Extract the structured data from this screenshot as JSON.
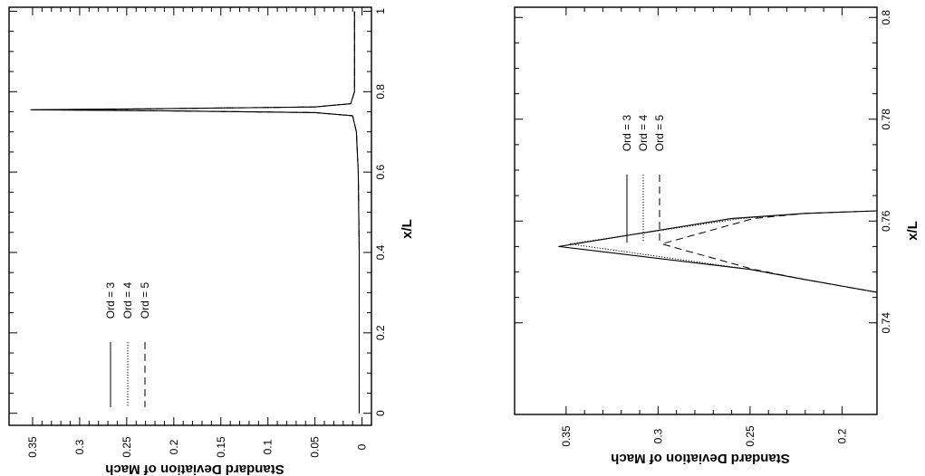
{
  "chart_data": [
    {
      "type": "line",
      "xlabel": "x/L",
      "ylabel": "Standard Deviation of Mach",
      "xlim": [
        -0.03,
        1.01
      ],
      "ylim": [
        -0.01,
        0.375
      ],
      "x_ticks": [
        0,
        0.2,
        0.4,
        0.6,
        0.8,
        1
      ],
      "x_tick_labels": [
        "0",
        "0.2",
        "0.4",
        "0.6",
        "0.8",
        "1"
      ],
      "y_ticks": [
        0,
        0.05,
        0.1,
        0.15,
        0.2,
        0.25,
        0.3,
        0.35
      ],
      "y_tick_labels": [
        "0",
        "0.05",
        "0.1",
        "0.15",
        "0.2",
        "0.25",
        "0.3",
        "0.35"
      ],
      "legend": [
        "Ord = 3",
        "Ord = 4",
        "Ord = 5"
      ],
      "series": [
        {
          "name": "Ord = 3",
          "style": "solid",
          "points": [
            [
              0,
              0.003
            ],
            [
              0.2,
              0.003
            ],
            [
              0.4,
              0.003
            ],
            [
              0.6,
              0.004
            ],
            [
              0.7,
              0.006
            ],
            [
              0.74,
              0.01
            ],
            [
              0.748,
              0.05
            ],
            [
              0.752,
              0.2
            ],
            [
              0.755,
              0.352
            ],
            [
              0.758,
              0.2
            ],
            [
              0.762,
              0.05
            ],
            [
              0.77,
              0.012
            ],
            [
              0.8,
              0.008
            ],
            [
              0.9,
              0.008
            ],
            [
              1.0,
              0.008
            ]
          ]
        },
        {
          "name": "Ord = 4",
          "style": "dotted",
          "points": [
            [
              0,
              0.003
            ],
            [
              0.2,
              0.003
            ],
            [
              0.4,
              0.003
            ],
            [
              0.6,
              0.004
            ],
            [
              0.7,
              0.006
            ],
            [
              0.74,
              0.01
            ],
            [
              0.748,
              0.05
            ],
            [
              0.752,
              0.2
            ],
            [
              0.755,
              0.35
            ],
            [
              0.758,
              0.2
            ],
            [
              0.762,
              0.05
            ],
            [
              0.77,
              0.012
            ],
            [
              0.8,
              0.008
            ],
            [
              0.9,
              0.008
            ],
            [
              1.0,
              0.008
            ]
          ]
        },
        {
          "name": "Ord = 5",
          "style": "dashed",
          "points": [
            [
              0,
              0.003
            ],
            [
              0.2,
              0.003
            ],
            [
              0.4,
              0.003
            ],
            [
              0.6,
              0.004
            ],
            [
              0.7,
              0.006
            ],
            [
              0.74,
              0.01
            ],
            [
              0.748,
              0.05
            ],
            [
              0.752,
              0.2
            ],
            [
              0.755,
              0.3
            ],
            [
              0.758,
              0.2
            ],
            [
              0.762,
              0.05
            ],
            [
              0.77,
              0.012
            ],
            [
              0.8,
              0.008
            ],
            [
              0.9,
              0.008
            ],
            [
              1.0,
              0.008
            ]
          ]
        }
      ]
    },
    {
      "type": "line",
      "xlabel": "x/L",
      "ylabel": "Standard Deviation of Mach",
      "xlim": [
        0.722,
        0.802
      ],
      "ylim": [
        0.181,
        0.378
      ],
      "x_ticks": [
        0.74,
        0.76,
        0.78,
        0.8
      ],
      "x_tick_labels": [
        "0.74",
        "0.76",
        "0.78",
        "0.8"
      ],
      "y_ticks": [
        0.2,
        0.25,
        0.3,
        0.35
      ],
      "y_tick_labels": [
        "0.2",
        "0.25",
        "0.3",
        "0.35"
      ],
      "legend": [
        "Ord = 3",
        "Ord = 4",
        "Ord = 5"
      ],
      "series": [
        {
          "name": "Ord = 3",
          "style": "solid",
          "points": [
            [
              0.746,
              0.181
            ],
            [
              0.7485,
              0.22
            ],
            [
              0.7505,
              0.25
            ],
            [
              0.755,
              0.354
            ],
            [
              0.7605,
              0.26
            ],
            [
              0.7615,
              0.22
            ],
            [
              0.762,
              0.181
            ]
          ]
        },
        {
          "name": "Ord = 4",
          "style": "dotted",
          "points": [
            [
              0.746,
              0.181
            ],
            [
              0.7485,
              0.22
            ],
            [
              0.7505,
              0.25
            ],
            [
              0.7555,
              0.348
            ],
            [
              0.7605,
              0.255
            ],
            [
              0.7615,
              0.22
            ],
            [
              0.762,
              0.181
            ]
          ]
        },
        {
          "name": "Ord = 5",
          "style": "dashed",
          "points": [
            [
              0.746,
              0.181
            ],
            [
              0.7485,
              0.22
            ],
            [
              0.7505,
              0.248
            ],
            [
              0.7555,
              0.298
            ],
            [
              0.7605,
              0.248
            ],
            [
              0.7615,
              0.22
            ],
            [
              0.762,
              0.181
            ]
          ]
        }
      ]
    }
  ]
}
